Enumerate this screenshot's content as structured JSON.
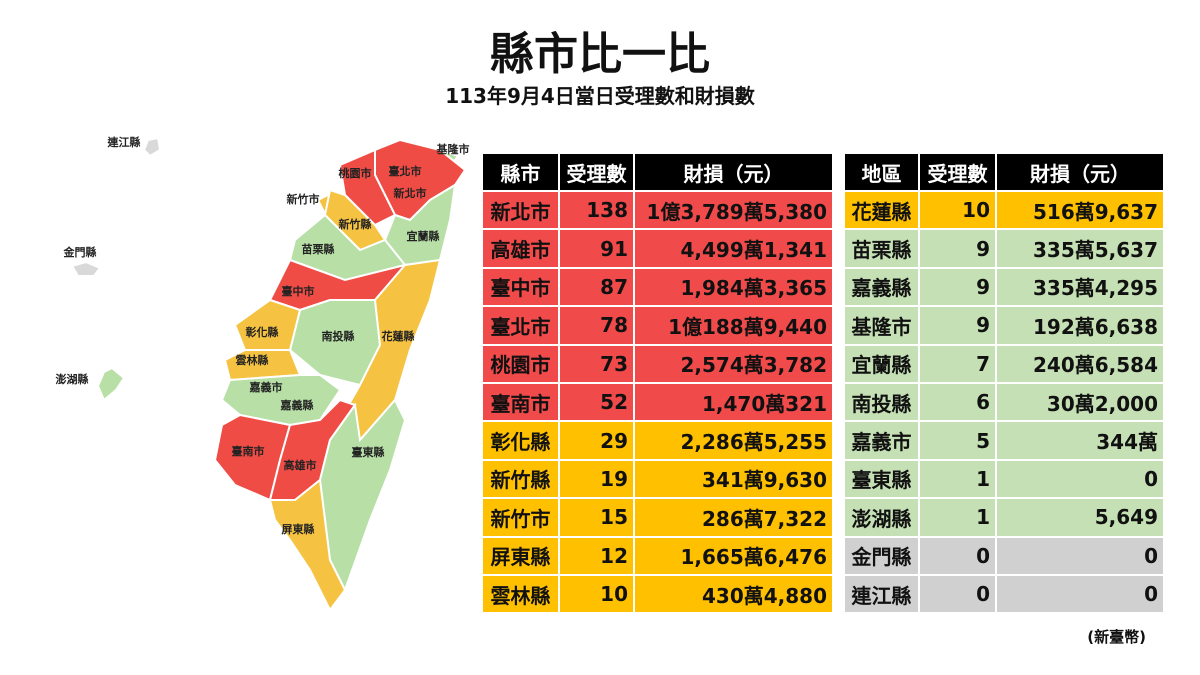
{
  "title": "縣市比一比",
  "subtitle": "113年9月4日當日受理數和財損數",
  "map": {
    "regions": [
      {
        "label": "基隆市",
        "color": "#b7dfa6"
      },
      {
        "label": "臺北市",
        "color": "#f04c46"
      },
      {
        "label": "新北市",
        "color": "#f04c46"
      },
      {
        "label": "桃園市",
        "color": "#f04c46"
      },
      {
        "label": "新竹市",
        "color": "#f5c242"
      },
      {
        "label": "新竹縣",
        "color": "#f5c242"
      },
      {
        "label": "宜蘭縣",
        "color": "#b7dfa6"
      },
      {
        "label": "苗栗縣",
        "color": "#b7dfa6"
      },
      {
        "label": "臺中市",
        "color": "#f04c46"
      },
      {
        "label": "南投縣",
        "color": "#b7dfa6"
      },
      {
        "label": "花蓮縣",
        "color": "#f5c242"
      },
      {
        "label": "彰化縣",
        "color": "#f5c242"
      },
      {
        "label": "雲林縣",
        "color": "#f5c242"
      },
      {
        "label": "嘉義市",
        "color": "#b7dfa6"
      },
      {
        "label": "嘉義縣",
        "color": "#b7dfa6"
      },
      {
        "label": "臺南市",
        "color": "#f04c46"
      },
      {
        "label": "高雄市",
        "color": "#f04c46"
      },
      {
        "label": "臺東縣",
        "color": "#b7dfa6"
      },
      {
        "label": "屏東縣",
        "color": "#f5c242"
      },
      {
        "label": "連江縣",
        "color": "#d9d9d9"
      },
      {
        "label": "金門縣",
        "color": "#d9d9d9"
      },
      {
        "label": "澎湖縣",
        "color": "#b7dfa6"
      }
    ]
  },
  "table_left": {
    "header": [
      "縣市",
      "受理數",
      "財損（元）"
    ],
    "header_color": "#000000",
    "rows": [
      {
        "cells": [
          "新北市",
          138,
          "1億3,789萬5,380"
        ],
        "color": "#f04a4a"
      },
      {
        "cells": [
          "高雄市",
          91,
          "4,499萬1,341"
        ],
        "color": "#f04a4a"
      },
      {
        "cells": [
          "臺中市",
          87,
          "1,984萬3,365"
        ],
        "color": "#f04a4a"
      },
      {
        "cells": [
          "臺北市",
          78,
          "1億188萬9,440"
        ],
        "color": "#f04a4a"
      },
      {
        "cells": [
          "桃園市",
          73,
          "2,574萬3,782"
        ],
        "color": "#f04a4a"
      },
      {
        "cells": [
          "臺南市",
          52,
          "1,470萬321"
        ],
        "color": "#f04a4a"
      },
      {
        "cells": [
          "彰化縣",
          29,
          "2,286萬5,255"
        ],
        "color": "#ffc000"
      },
      {
        "cells": [
          "新竹縣",
          19,
          "341萬9,630"
        ],
        "color": "#ffc000"
      },
      {
        "cells": [
          "新竹市",
          15,
          "286萬7,322"
        ],
        "color": "#ffc000"
      },
      {
        "cells": [
          "屏東縣",
          12,
          "1,665萬6,476"
        ],
        "color": "#ffc000"
      },
      {
        "cells": [
          "雲林縣",
          10,
          "430萬4,880"
        ],
        "color": "#ffc000"
      }
    ]
  },
  "table_right": {
    "header": [
      "地區",
      "受理數",
      "財損（元）"
    ],
    "header_color": "#000000",
    "rows": [
      {
        "cells": [
          "花蓮縣",
          10,
          "516萬9,637"
        ],
        "color": "#ffc000"
      },
      {
        "cells": [
          "苗栗縣",
          9,
          "335萬5,637"
        ],
        "color": "#c5e0b4"
      },
      {
        "cells": [
          "嘉義縣",
          9,
          "335萬4,295"
        ],
        "color": "#c5e0b4"
      },
      {
        "cells": [
          "基隆市",
          9,
          "192萬6,638"
        ],
        "color": "#c5e0b4"
      },
      {
        "cells": [
          "宜蘭縣",
          7,
          "240萬6,584"
        ],
        "color": "#c5e0b4"
      },
      {
        "cells": [
          "南投縣",
          6,
          "30萬2,000"
        ],
        "color": "#c5e0b4"
      },
      {
        "cells": [
          "嘉義市",
          5,
          "344萬"
        ],
        "color": "#c5e0b4"
      },
      {
        "cells": [
          "臺東縣",
          1,
          "0"
        ],
        "color": "#c5e0b4"
      },
      {
        "cells": [
          "澎湖縣",
          1,
          "5,649"
        ],
        "color": "#c5e0b4"
      },
      {
        "cells": [
          "金門縣",
          0,
          "0"
        ],
        "color": "#d0d0d0"
      },
      {
        "cells": [
          "連江縣",
          0,
          "0"
        ],
        "color": "#d0d0d0"
      }
    ]
  },
  "note": "(新臺幣)"
}
